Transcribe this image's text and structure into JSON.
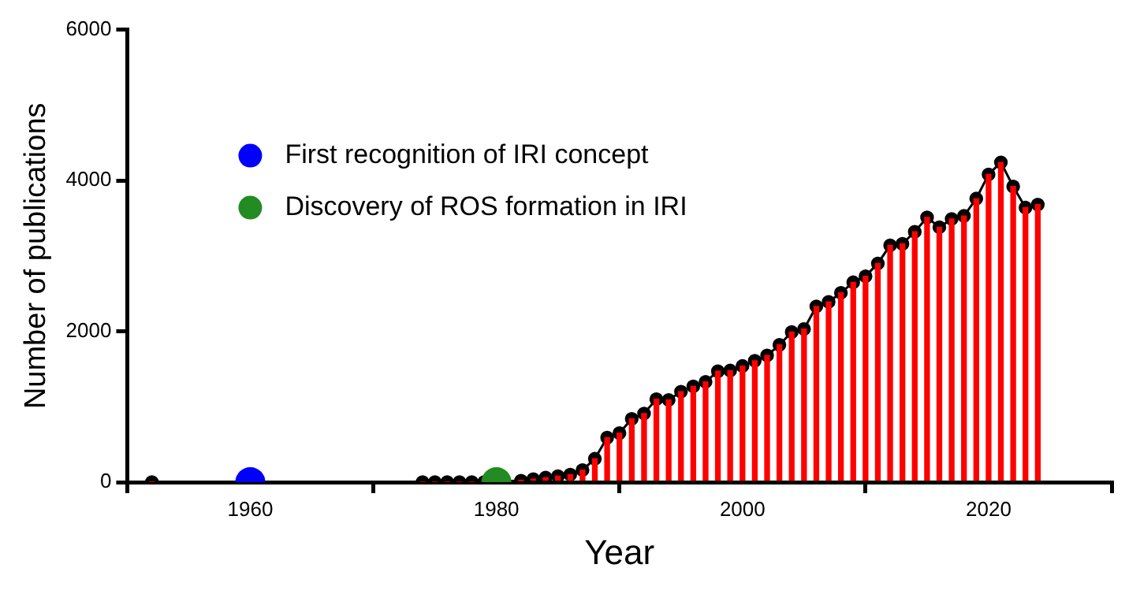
{
  "chart_data": {
    "type": "line",
    "xlabel": "Year",
    "ylabel": "Number of publications",
    "x": [
      1952,
      1974,
      1975,
      1976,
      1977,
      1978,
      1979,
      1982,
      1983,
      1984,
      1985,
      1986,
      1987,
      1988,
      1989,
      1990,
      1991,
      1992,
      1993,
      1994,
      1995,
      1996,
      1997,
      1998,
      1999,
      2000,
      2001,
      2002,
      2003,
      2004,
      2005,
      2006,
      2007,
      2008,
      2009,
      2010,
      2011,
      2012,
      2013,
      2014,
      2015,
      2016,
      2017,
      2018,
      2019,
      2020,
      2021,
      2022,
      2023,
      2024
    ],
    "series": [
      {
        "type": "bar",
        "color": "#ff0000",
        "values": [
          0,
          0,
          0,
          0,
          0,
          0,
          0,
          20,
          40,
          60,
          80,
          100,
          160,
          310,
          590,
          650,
          840,
          910,
          1100,
          1090,
          1200,
          1270,
          1330,
          1470,
          1480,
          1540,
          1610,
          1680,
          1820,
          1990,
          2030,
          2330,
          2390,
          2510,
          2650,
          2730,
          2900,
          3140,
          3160,
          3320,
          3510,
          3380,
          3490,
          3530,
          3760,
          4080,
          4240,
          3920,
          3640,
          3680
        ]
      },
      {
        "color": "#000000",
        "marker": "circle",
        "values": [
          0,
          0,
          0,
          0,
          0,
          0,
          0,
          20,
          40,
          60,
          80,
          100,
          160,
          310,
          590,
          650,
          840,
          910,
          1100,
          1090,
          1200,
          1270,
          1330,
          1470,
          1480,
          1540,
          1610,
          1680,
          1820,
          1990,
          2030,
          2330,
          2390,
          2510,
          2650,
          2730,
          2900,
          3140,
          3160,
          3320,
          3510,
          3380,
          3490,
          3530,
          3760,
          4080,
          4240,
          3920,
          3640,
          3680
        ]
      },
      {
        "type": "scatter",
        "name": "First recognition of IRI concept",
        "color": "#0000ff",
        "marker": "circle",
        "x": [
          1960
        ],
        "values": [
          0
        ]
      },
      {
        "type": "scatter",
        "name": "Discovery of ROS formation in IRI",
        "color": "#228b22",
        "marker": "circle",
        "x": [
          1980
        ],
        "values": [
          0
        ]
      }
    ],
    "xlim": [
      1950,
      2030
    ],
    "xticks": [
      1960,
      1980,
      2000,
      2020
    ],
    "ylim": [
      0,
      6000
    ],
    "yticks": [
      0,
      2000,
      4000,
      6000
    ],
    "grid": false,
    "legend": "top left"
  }
}
